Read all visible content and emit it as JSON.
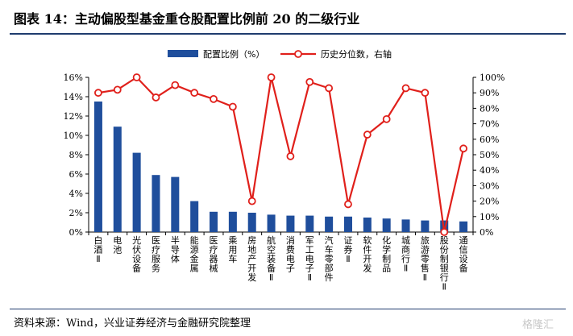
{
  "header": {
    "title": "图表 14：主动偏股型基金重仓股配置比例前 20 的二级行业"
  },
  "footer": {
    "source": "资料来源：Wind，兴业证券经济与金融研究院整理",
    "watermark": "格隆汇"
  },
  "colors": {
    "bar": "#1f4e9c",
    "line": "#e0201b",
    "marker_fill": "#ffffff",
    "rule": "#1f3c6e"
  },
  "chart_data": {
    "type": "bar+line",
    "categories": [
      "白酒Ⅱ",
      "电池",
      "光伏设备",
      "医疗服务",
      "半导体",
      "能源金属",
      "医疗器械",
      "乘用车",
      "房地产开发",
      "航空装备Ⅱ",
      "消费电子",
      "军工电子Ⅱ",
      "汽车零部件",
      "证券Ⅱ",
      "软件开发",
      "化学制品",
      "城商行Ⅱ",
      "旅游零售Ⅱ",
      "股份制银行Ⅱ",
      "通信设备"
    ],
    "series": [
      {
        "name": "配置比例（%）",
        "type": "bar",
        "axis": "left",
        "values": [
          13.5,
          10.9,
          8.2,
          5.9,
          5.7,
          3.2,
          2.1,
          2.1,
          2.0,
          1.8,
          1.7,
          1.7,
          1.6,
          1.6,
          1.5,
          1.4,
          1.3,
          1.2,
          1.2,
          1.1
        ]
      },
      {
        "name": "历史分位数，右轴",
        "type": "line",
        "axis": "right",
        "values": [
          90,
          92,
          100,
          87,
          95,
          90,
          86,
          81,
          20,
          100,
          49,
          97,
          93,
          18,
          63,
          73,
          93,
          90,
          0,
          54
        ]
      }
    ],
    "y_left": {
      "min": 0,
      "max": 16,
      "step": 2,
      "ticks": [
        "0%",
        "2%",
        "4%",
        "6%",
        "8%",
        "10%",
        "12%",
        "14%",
        "16%"
      ]
    },
    "y_right": {
      "min": 0,
      "max": 100,
      "step": 10,
      "ticks": [
        "0%",
        "10%",
        "20%",
        "30%",
        "40%",
        "50%",
        "60%",
        "70%",
        "80%",
        "90%",
        "100%"
      ]
    },
    "legend_position": "top-center",
    "grid": false
  }
}
